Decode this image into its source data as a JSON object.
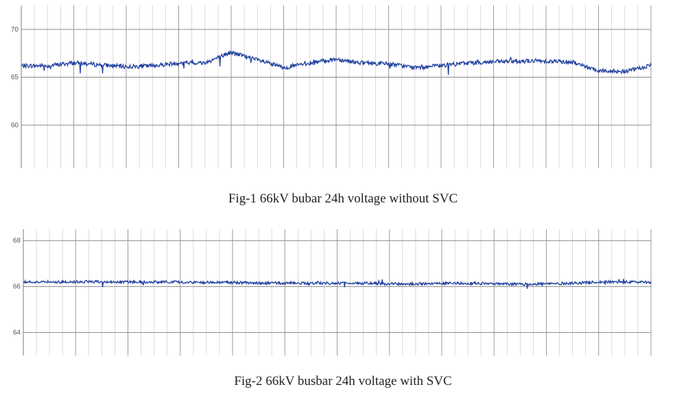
{
  "chart_data": [
    {
      "type": "line",
      "title": "Fig-1 66kV bubar 24h voltage without SVC",
      "xlabel": "",
      "ylabel": "",
      "ylim": [
        55.5,
        72.5
      ],
      "yticks": [
        60,
        65,
        70
      ],
      "xlim": [
        0,
        24
      ],
      "grid": true,
      "line_color": "#1f3f9e",
      "series": [
        {
          "x": [
            0,
            1,
            2,
            3,
            4,
            5,
            6,
            7,
            8,
            9,
            10,
            11,
            12,
            13,
            14,
            15,
            16,
            17,
            18,
            19,
            20,
            21,
            22,
            23,
            24
          ],
          "values": [
            66.2,
            66.2,
            66.5,
            66.3,
            66.1,
            66.2,
            66.5,
            66.5,
            67.6,
            66.8,
            66.0,
            66.5,
            66.9,
            66.5,
            66.4,
            66.0,
            66.2,
            66.5,
            66.6,
            66.7,
            66.7,
            66.6,
            65.7,
            65.6,
            66.2
          ]
        }
      ]
    },
    {
      "type": "line",
      "title": "Fig-2 66kV busbar 24h voltage with SVC",
      "xlabel": "",
      "ylabel": "",
      "ylim": [
        63.0,
        68.5
      ],
      "yticks": [
        64,
        66,
        68
      ],
      "xlim": [
        0,
        24
      ],
      "grid": true,
      "line_color": "#1f3f9e",
      "series": [
        {
          "x": [
            0,
            1,
            2,
            3,
            4,
            5,
            6,
            7,
            8,
            9,
            10,
            11,
            12,
            13,
            14,
            15,
            16,
            17,
            18,
            19,
            20,
            21,
            22,
            23,
            24
          ],
          "values": [
            66.2,
            66.2,
            66.2,
            66.22,
            66.2,
            66.2,
            66.2,
            66.18,
            66.18,
            66.15,
            66.15,
            66.15,
            66.15,
            66.15,
            66.12,
            66.12,
            66.15,
            66.15,
            66.12,
            66.1,
            66.12,
            66.15,
            66.2,
            66.2,
            66.2
          ]
        }
      ]
    }
  ]
}
